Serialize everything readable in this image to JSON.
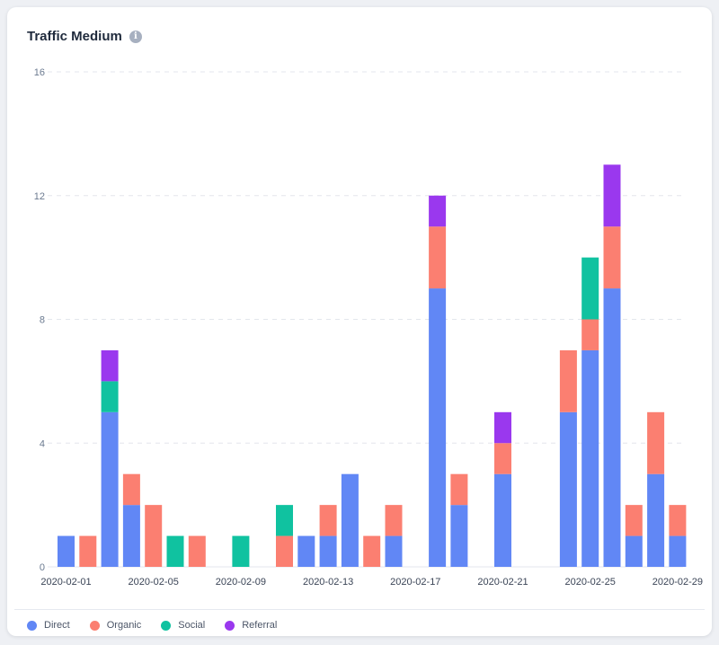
{
  "card": {
    "title": "Traffic Medium",
    "info_icon": "info-icon"
  },
  "chart_data": {
    "type": "bar",
    "stacked": true,
    "title": "Traffic Medium",
    "xlabel": "",
    "ylabel": "",
    "ylim": [
      0,
      16
    ],
    "yticks": [
      0,
      4,
      8,
      12,
      16
    ],
    "grid": true,
    "legend_position": "bottom",
    "categories": [
      "2020-02-01",
      "2020-02-02",
      "2020-02-03",
      "2020-02-04",
      "2020-02-05",
      "2020-02-06",
      "2020-02-07",
      "2020-02-08",
      "2020-02-09",
      "2020-02-10",
      "2020-02-11",
      "2020-02-12",
      "2020-02-13",
      "2020-02-14",
      "2020-02-15",
      "2020-02-16",
      "2020-02-17",
      "2020-02-18",
      "2020-02-19",
      "2020-02-20",
      "2020-02-21",
      "2020-02-22",
      "2020-02-23",
      "2020-02-24",
      "2020-02-25",
      "2020-02-26",
      "2020-02-27",
      "2020-02-28",
      "2020-02-29",
      "2020-03-01"
    ],
    "xtick_labels": [
      "2020-02-01",
      "2020-02-05",
      "2020-02-09",
      "2020-02-13",
      "2020-02-17",
      "2020-02-21",
      "2020-02-25",
      "2020-02-29"
    ],
    "series": [
      {
        "name": "Direct",
        "color": "#6187f5",
        "values": [
          1,
          0,
          5,
          2,
          0,
          0,
          0,
          0,
          0,
          0,
          0,
          1,
          1,
          3,
          0,
          1,
          0,
          9,
          2,
          0,
          3,
          0,
          0,
          5,
          7,
          9,
          1,
          3,
          1,
          0
        ]
      },
      {
        "name": "Organic",
        "color": "#fb7f71",
        "values": [
          0,
          1,
          0,
          1,
          2,
          0,
          1,
          0,
          0,
          0,
          1,
          0,
          1,
          0,
          1,
          1,
          0,
          2,
          1,
          0,
          1,
          0,
          0,
          2,
          1,
          2,
          1,
          2,
          1,
          0
        ]
      },
      {
        "name": "Social",
        "color": "#10c2a0",
        "values": [
          0,
          0,
          1,
          0,
          0,
          1,
          0,
          0,
          1,
          0,
          1,
          0,
          0,
          0,
          0,
          0,
          0,
          0,
          0,
          0,
          0,
          0,
          0,
          0,
          2,
          0,
          0,
          0,
          0,
          0
        ]
      },
      {
        "name": "Referral",
        "color": "#9a38ee",
        "values": [
          0,
          0,
          1,
          0,
          0,
          0,
          0,
          0,
          0,
          0,
          0,
          0,
          0,
          0,
          0,
          0,
          0,
          1,
          0,
          0,
          1,
          0,
          0,
          0,
          0,
          2,
          0,
          0,
          0,
          0
        ]
      }
    ]
  }
}
